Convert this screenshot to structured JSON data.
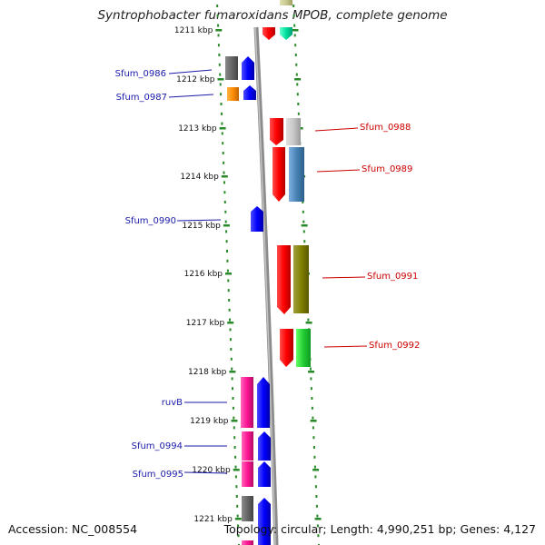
{
  "title": "Syntrophobacter fumaroxidans MPOB, complete genome",
  "accession": "Accession: NC_008554",
  "topology": "Topology: circular; Length: 4,990,251 bp; Genes: 4,127",
  "colors": {
    "left_label": "#1a1aaa",
    "right_label": "#cc0000",
    "ruler": "#2a8a2a",
    "backbone": "#909090"
  },
  "kbp_ticks": [
    "1211 kbp",
    "1212 kbp",
    "1213 kbp",
    "1214 kbp",
    "1215 kbp",
    "1216 kbp",
    "1217 kbp",
    "1218 kbp",
    "1219 kbp",
    "1220 kbp",
    "1221 kbp"
  ],
  "left_labels": [
    "Sfum_0986",
    "Sfum_0987",
    "Sfum_0990",
    "ruvB",
    "Sfum_0994",
    "Sfum_0995"
  ],
  "right_labels": [
    "Sfum_0988",
    "Sfum_0989",
    "Sfum_0991",
    "Sfum_0992"
  ]
}
